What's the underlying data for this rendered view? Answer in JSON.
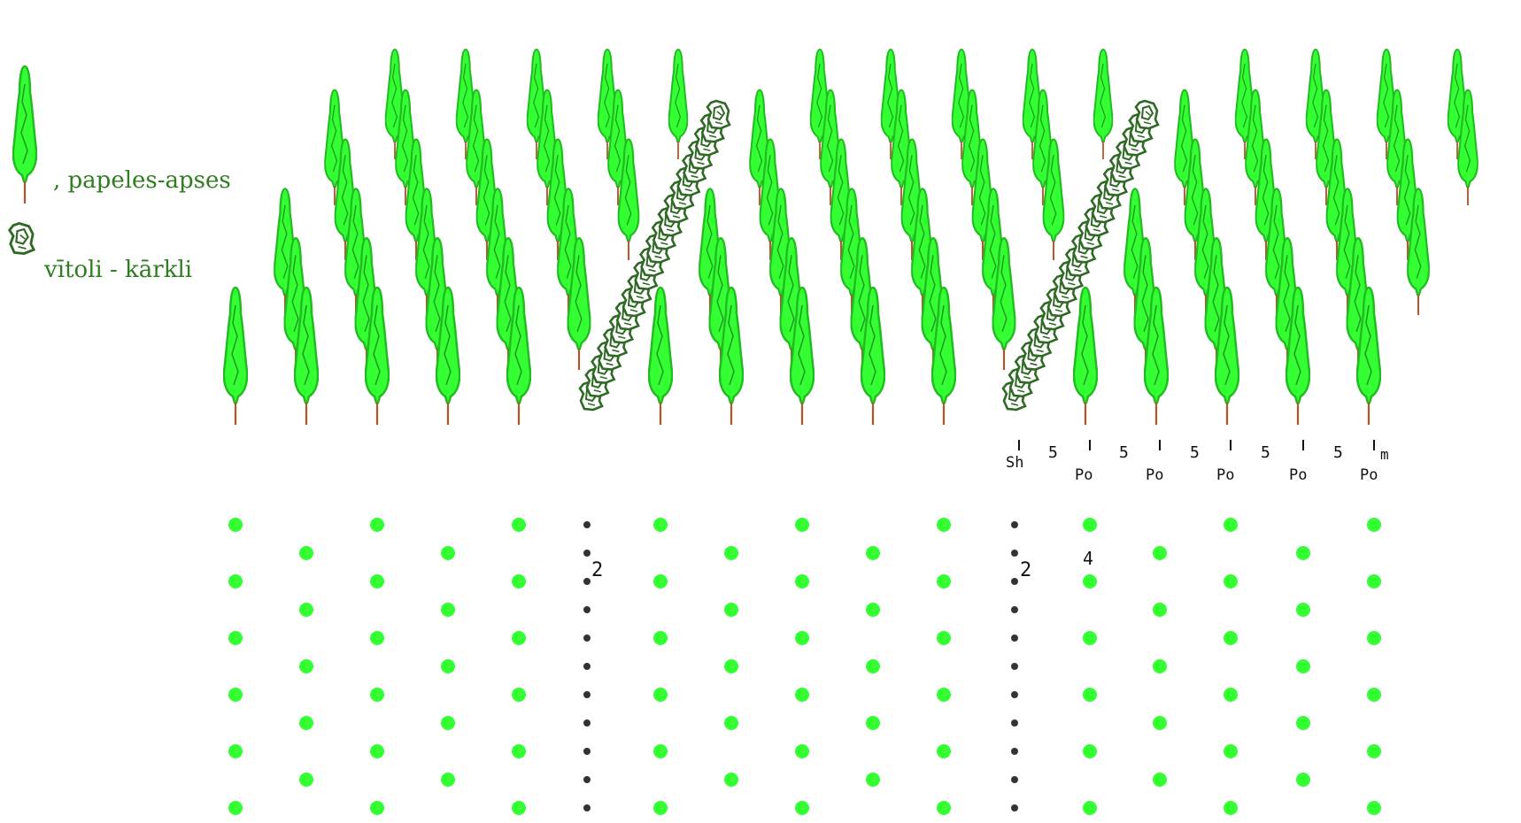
{
  "legend": {
    "poplar_label": ", papeles-apses",
    "willow_label": "vītoli - kārkli"
  },
  "scale": {
    "labels": [
      "Sh",
      "5",
      "Po",
      "5",
      "Po",
      "5",
      "Po",
      "5",
      "Po",
      "5",
      "Po"
    ],
    "unit": "m"
  },
  "spacing": {
    "willow_in_row_left": "2",
    "willow_in_row_right": "2",
    "poplar_in_row": "4"
  },
  "colors": {
    "poplar_fill": "#33ff33",
    "poplar_outline": "#22bb22",
    "poplar_trunk": "#b5522a",
    "willow": "#2f6a25",
    "plan_willow_dot": "#333333"
  }
}
